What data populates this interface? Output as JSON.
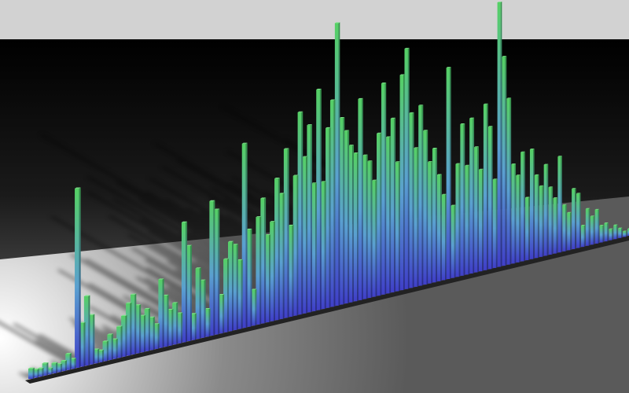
{
  "chart_data": {
    "type": "bar",
    "title": "",
    "xlabel": "",
    "ylabel": "",
    "grid": false,
    "legend": "none",
    "values": [
      0.05,
      0.04,
      0.04,
      0.06,
      0.03,
      0.05,
      0.04,
      0.05,
      0.08,
      0.05,
      0.9,
      0.22,
      0.35,
      0.25,
      0.07,
      0.06,
      0.1,
      0.13,
      0.1,
      0.16,
      0.21,
      0.27,
      0.31,
      0.25,
      0.19,
      0.22,
      0.17,
      0.13,
      0.36,
      0.27,
      0.19,
      0.22,
      0.16,
      0.64,
      0.51,
      0.14,
      0.38,
      0.31,
      0.15,
      0.73,
      0.68,
      0.21,
      0.4,
      0.49,
      0.47,
      0.38,
      1.02,
      0.54,
      0.2,
      0.6,
      0.7,
      0.49,
      0.56,
      0.8,
      0.71,
      0.96,
      0.52,
      0.8,
      1.16,
      0.9,
      1.08,
      0.74,
      1.28,
      0.74,
      1.05,
      1.21,
      1.66,
      1.1,
      1.02,
      0.93,
      0.88,
      1.2,
      0.86,
      0.82,
      0.7,
      0.98,
      1.28,
      0.95,
      1.06,
      0.79,
      1.32,
      1.48,
      1.08,
      0.86,
      1.12,
      0.96,
      0.76,
      0.84,
      0.67,
      0.54,
      1.34,
      0.46,
      0.72,
      0.97,
      0.7,
      1.0,
      0.81,
      0.66,
      1.08,
      0.93,
      0.58,
      1.74,
      1.38,
      1.1,
      0.66,
      0.58,
      0.73,
      0.42,
      0.74,
      0.56,
      0.48,
      0.62,
      0.46,
      0.38,
      0.66,
      0.32,
      0.26,
      0.42,
      0.38,
      0.15,
      0.26,
      0.2,
      0.24,
      0.12,
      0.13,
      0.08,
      0.1,
      0.07,
      0.04,
      0.05
    ],
    "colors": {
      "bar_base": "#3f3fc8",
      "bar_mid": "#5aa0d0",
      "bar_top": "#55d064",
      "floor_near": "#ffffff",
      "floor_far": "#6a6a6a",
      "backdrop": "#000000",
      "sky": "#d2d2d2"
    }
  }
}
